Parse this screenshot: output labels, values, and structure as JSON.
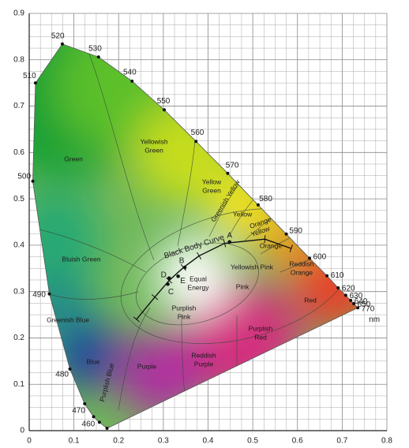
{
  "chart_data": {
    "type": "chromaticity",
    "xlim": [
      0,
      0.8
    ],
    "ylim": [
      0,
      0.9
    ],
    "xticks": [
      0,
      0.1,
      0.2,
      0.3,
      0.4,
      0.5,
      0.6,
      0.7,
      0.8
    ],
    "yticks": [
      0,
      0.1,
      0.2,
      0.3,
      0.4,
      0.5,
      0.6,
      0.7,
      0.8,
      0.9
    ],
    "grid": true,
    "spectral_locus": {
      "wavelengths": [
        null,
        null,
        460,
        470,
        480,
        490,
        500,
        510,
        520,
        530,
        540,
        550,
        560,
        570,
        580,
        590,
        600,
        610,
        620,
        630,
        640,
        650,
        770
      ],
      "x": [
        0.174,
        0.157,
        0.144,
        0.124,
        0.091,
        0.045,
        0.008,
        0.014,
        0.074,
        0.155,
        0.23,
        0.302,
        0.373,
        0.444,
        0.512,
        0.575,
        0.627,
        0.666,
        0.691,
        0.708,
        0.719,
        0.726,
        0.735
      ],
      "y": [
        0.005,
        0.018,
        0.03,
        0.058,
        0.133,
        0.295,
        0.538,
        0.75,
        0.834,
        0.806,
        0.754,
        0.692,
        0.624,
        0.555,
        0.487,
        0.424,
        0.372,
        0.334,
        0.308,
        0.292,
        0.281,
        0.274,
        0.265
      ],
      "unit": "nm"
    },
    "black_body_curve": {
      "label": "Black Body Curve",
      "x": [
        0.24,
        0.281,
        0.313,
        0.345,
        0.38,
        0.437,
        0.527,
        0.586
      ],
      "y": [
        0.24,
        0.288,
        0.324,
        0.352,
        0.377,
        0.404,
        0.413,
        0.393
      ]
    },
    "illuminants": [
      {
        "label": "A",
        "x": 0.448,
        "y": 0.407
      },
      {
        "label": "B",
        "x": 0.348,
        "y": 0.352
      },
      {
        "label": "C",
        "x": 0.31,
        "y": 0.316
      },
      {
        "label": "D",
        "x": 0.313,
        "y": 0.329
      },
      {
        "label": "E",
        "x": 0.333,
        "y": 0.333
      }
    ],
    "regions": [
      [
        "Green"
      ],
      [
        "Yellowish",
        "Green"
      ],
      [
        "Yellow",
        "Green"
      ],
      [
        "Greenish Yellow"
      ],
      [
        "Yellow"
      ],
      [
        "Orange",
        "Yellow"
      ],
      [
        "Orange"
      ],
      [
        "Reddish",
        "Orange"
      ],
      [
        "Red"
      ],
      [
        "Pink"
      ],
      [
        "Yellowish Pink"
      ],
      [
        "Purplish",
        "Pink"
      ],
      [
        "Purplish",
        "Red"
      ],
      [
        "Reddish",
        "Purple"
      ],
      [
        "Purple"
      ],
      [
        "Purplish Blue"
      ],
      [
        "Blue"
      ],
      [
        "Greenish Blue"
      ],
      [
        "Bluish Green"
      ],
      [
        "Equal",
        "Energy"
      ]
    ]
  }
}
